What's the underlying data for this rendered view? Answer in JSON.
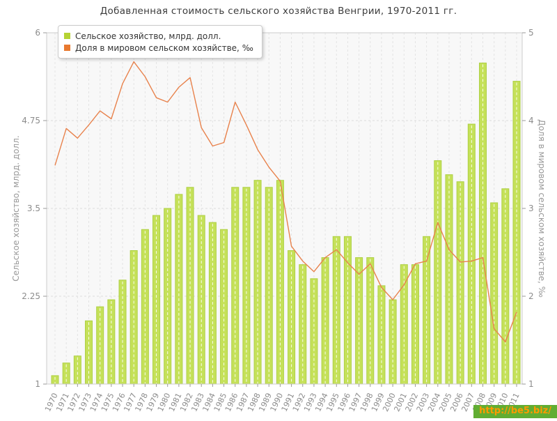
{
  "title": "Добавленная стоимость сельского хозяйства Венгрии, 1970-2011 гг.",
  "legend": [
    {
      "label": "Сельское хозяйство, млрд. долл.",
      "color": "#b5d334"
    },
    {
      "label": "Доля в мировом сельском хозяйстве, ‰",
      "color": "#e8792f"
    }
  ],
  "watermark": {
    "text": "http://be5.biz/",
    "bg_color": "#61ad32",
    "text_color": "#ff9a00"
  },
  "colors": {
    "bar_fill": "#c5e159",
    "bar_stroke": "#aed045",
    "line": "#e8824c",
    "plot_bg": "#f8f8f8",
    "plot_border": "#cccccc",
    "grid_h": "#dcdcdc",
    "grid_v": "#e3e3e3",
    "tick_label": "#8c8c8c",
    "axis_title": "#999999"
  },
  "chart_data": {
    "type": "bar+line",
    "title": "Добавленная стоимость сельского хозяйства Венгрии, 1970-2011 гг.",
    "categories": [
      1970,
      1971,
      1972,
      1973,
      1974,
      1975,
      1976,
      1977,
      1978,
      1979,
      1980,
      1981,
      1982,
      1983,
      1984,
      1985,
      1986,
      1987,
      1988,
      1989,
      1990,
      1991,
      1992,
      1993,
      1994,
      1995,
      1996,
      1997,
      1998,
      1999,
      2000,
      2001,
      2002,
      2003,
      2004,
      2005,
      2006,
      2007,
      2008,
      2009,
      2010,
      2011
    ],
    "series": [
      {
        "name": "Сельское хозяйство, млрд. долл.",
        "type": "bar",
        "axis": "left",
        "values": [
          1.12,
          1.3,
          1.4,
          1.9,
          2.1,
          2.2,
          2.48,
          2.9,
          3.2,
          3.4,
          3.5,
          3.7,
          3.8,
          3.4,
          3.3,
          3.2,
          3.8,
          3.8,
          3.9,
          3.8,
          3.9,
          2.9,
          2.7,
          2.5,
          2.8,
          3.1,
          3.1,
          2.8,
          2.8,
          2.4,
          2.2,
          2.7,
          2.7,
          3.1,
          4.18,
          3.98,
          3.88,
          4.7,
          5.57,
          3.58,
          3.78,
          5.31
        ]
      },
      {
        "name": "Доля в мировом сельском хозяйстве, ‰",
        "type": "line",
        "axis": "right",
        "values": [
          3.49,
          3.91,
          3.8,
          3.95,
          4.11,
          4.02,
          4.42,
          4.67,
          4.5,
          4.26,
          4.21,
          4.38,
          4.49,
          3.92,
          3.71,
          3.75,
          4.21,
          3.95,
          3.67,
          3.47,
          3.31,
          2.57,
          2.4,
          2.28,
          2.44,
          2.53,
          2.38,
          2.25,
          2.37,
          2.1,
          1.96,
          2.13,
          2.37,
          2.4,
          2.84,
          2.53,
          2.39,
          2.4,
          2.44,
          1.63,
          1.48,
          1.82
        ]
      }
    ],
    "left_axis": {
      "label": "Сельское хозяйство, млрд. долл.",
      "ticks": [
        "1",
        "2.25",
        "3.5",
        "4.75",
        "6"
      ],
      "range": [
        1,
        6
      ]
    },
    "right_axis": {
      "label": "Доля в мировом сельском хозяйстве, ‰",
      "ticks": [
        "1",
        "2",
        "3",
        "4",
        "5"
      ],
      "range": [
        1,
        5
      ]
    },
    "grid": true,
    "legend_position": "top-left"
  }
}
